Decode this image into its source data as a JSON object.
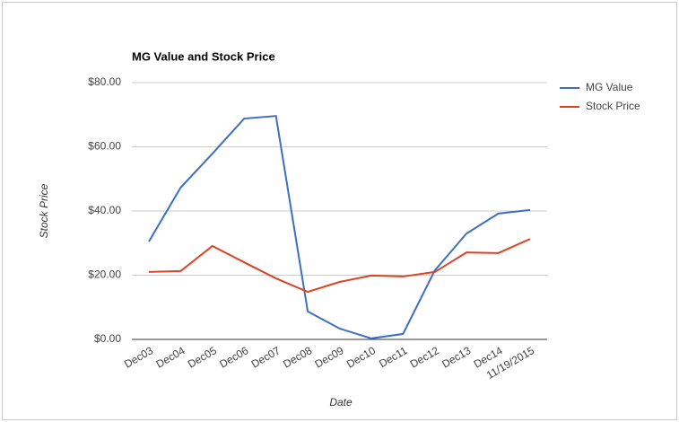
{
  "chart_data": {
    "type": "line",
    "title": "MG Value and Stock Price",
    "x_label": "Date",
    "y_label": "Stock Price",
    "categories": [
      "Dec03",
      "Dec04",
      "Dec05",
      "Dec06",
      "Dec07",
      "Dec08",
      "Dec09",
      "Dec10",
      "Dec11",
      "Dec12",
      "Dec13",
      "Dec14",
      "11/19/2015"
    ],
    "series": [
      {
        "name": "MG Value",
        "color": "#3c6fc4",
        "values": [
          30.5,
          47.3,
          57.9,
          68.8,
          69.6,
          8.7,
          3.4,
          0.3,
          1.7,
          21.5,
          33,
          39.2,
          40.3
        ]
      },
      {
        "name": "Stock Price",
        "color": "#db4325",
        "values": [
          21,
          21.3,
          29.1,
          24,
          19,
          14.8,
          17.9,
          19.9,
          19.6,
          21,
          27.1,
          26.9,
          31.3
        ]
      }
    ],
    "ylim": [
      0,
      80
    ],
    "yticks": [
      {
        "value": 0,
        "label": "$0.00"
      },
      {
        "value": 20,
        "label": "$20.00"
      },
      {
        "value": 40,
        "label": "$40.00"
      },
      {
        "value": 60,
        "label": "$60.00"
      },
      {
        "value": 80,
        "label": "$80.00"
      }
    ],
    "grid": true,
    "legend": "right"
  }
}
